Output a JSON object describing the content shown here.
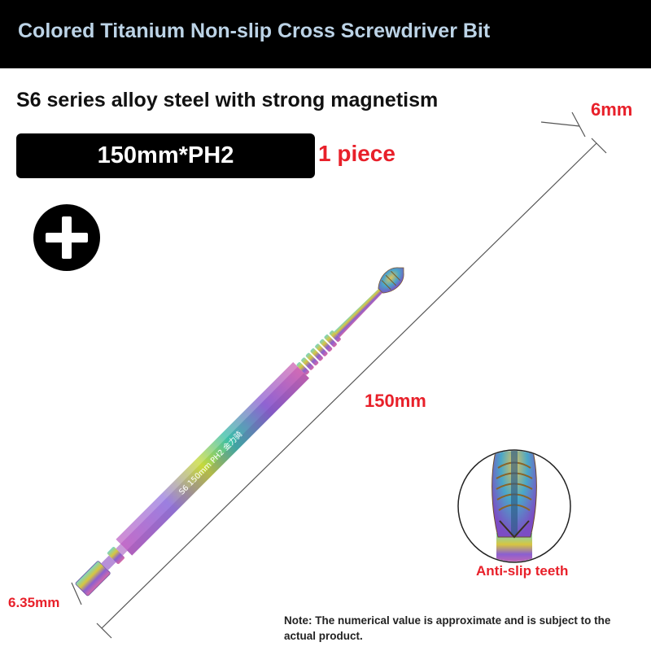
{
  "header": {
    "title": "Colored Titanium Non-slip Cross Screwdriver Bit"
  },
  "subtitle": "S6 series alloy steel with strong magnetism",
  "spec": {
    "label": "150mm*PH2",
    "quantity": "1 piece"
  },
  "dimensions": {
    "tip_width": "6mm",
    "length": "150mm",
    "shank_width": "6.35mm"
  },
  "bit_engraving": "S6 150mm  PH2 金力骑",
  "detail": {
    "label": "Anti-slip teeth"
  },
  "note": "Note: The numerical value is approximate and is subject to the actual product.",
  "colors": {
    "header_bg": "#000000",
    "header_text": "#bcd3e6",
    "accent_red": "#e8202a",
    "badge_bg": "#000000"
  },
  "icons": [
    "plus-icon"
  ]
}
